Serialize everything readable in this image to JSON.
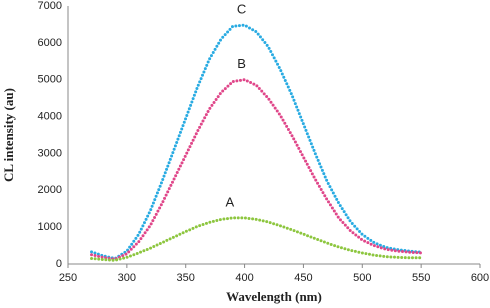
{
  "chart_data": {
    "type": "line",
    "x_label": "Wavelength (nm)",
    "y_label": "CL intensity (au)",
    "x": [
      270,
      280,
      290,
      300,
      310,
      320,
      330,
      340,
      350,
      360,
      370,
      380,
      390,
      400,
      410,
      420,
      430,
      440,
      450,
      460,
      470,
      480,
      490,
      500,
      510,
      520,
      530,
      540,
      550
    ],
    "series": [
      {
        "name": "C",
        "color": "#29abe2",
        "values": [
          330,
          220,
          150,
          350,
          800,
          1450,
          2250,
          3100,
          3950,
          4800,
          5550,
          6100,
          6450,
          6480,
          6300,
          5900,
          5300,
          4600,
          3800,
          3000,
          2250,
          1650,
          1150,
          800,
          580,
          450,
          390,
          350,
          320
        ]
      },
      {
        "name": "B",
        "color": "#e0478a",
        "values": [
          250,
          180,
          130,
          280,
          600,
          1050,
          1650,
          2300,
          2950,
          3600,
          4200,
          4650,
          4950,
          5000,
          4850,
          4500,
          4050,
          3500,
          2900,
          2300,
          1750,
          1250,
          900,
          650,
          500,
          400,
          350,
          320,
          300
        ]
      },
      {
        "name": "A",
        "color": "#8dc63f",
        "values": [
          150,
          120,
          100,
          180,
          300,
          430,
          580,
          730,
          880,
          1020,
          1130,
          1210,
          1250,
          1250,
          1210,
          1140,
          1040,
          930,
          810,
          690,
          570,
          460,
          370,
          300,
          240,
          200,
          180,
          170,
          170
        ]
      }
    ],
    "xlim": [
      250,
      600
    ],
    "xticks": [
      250,
      300,
      350,
      400,
      450,
      500,
      550,
      600
    ],
    "ylim": [
      0,
      7000
    ],
    "yticks": [
      0,
      1000,
      2000,
      3000,
      4000,
      5000,
      6000,
      7000
    ],
    "grid": false
  }
}
